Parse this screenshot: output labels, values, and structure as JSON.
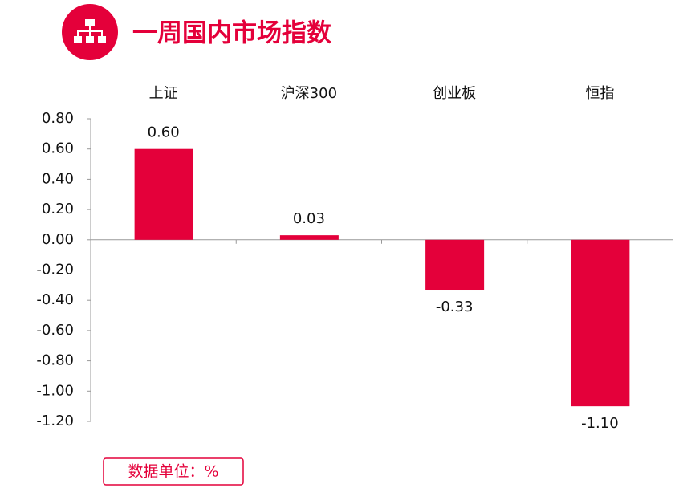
{
  "chart_data": {
    "type": "bar",
    "title": "一周国内市场指数",
    "categories": [
      "上证",
      "沪深300",
      "创业板",
      "恒指"
    ],
    "values": [
      0.6,
      0.03,
      -0.33,
      -1.1
    ],
    "value_labels": [
      "0.60",
      "0.03",
      "-0.33",
      "-1.10"
    ],
    "color": "#e4003a",
    "ylim": [
      -1.2,
      0.8
    ],
    "yticks": [
      {
        "value": -1.2,
        "label": "-1.20"
      },
      {
        "value": -1.0,
        "label": "-1.00"
      },
      {
        "value": -0.8,
        "label": "-0.80"
      },
      {
        "value": -0.6,
        "label": "-0.60"
      },
      {
        "value": -0.4,
        "label": "-0.40"
      },
      {
        "value": -0.2,
        "label": "-0.20"
      },
      {
        "value": 0,
        "label": "0.00"
      },
      {
        "value": 0.2,
        "label": "0.20"
      },
      {
        "value": 0.4,
        "label": "0.40"
      },
      {
        "value": 0.6,
        "label": "0.60"
      },
      {
        "value": 0.8,
        "label": "0.80"
      }
    ],
    "annotation": "数据单位：%"
  }
}
